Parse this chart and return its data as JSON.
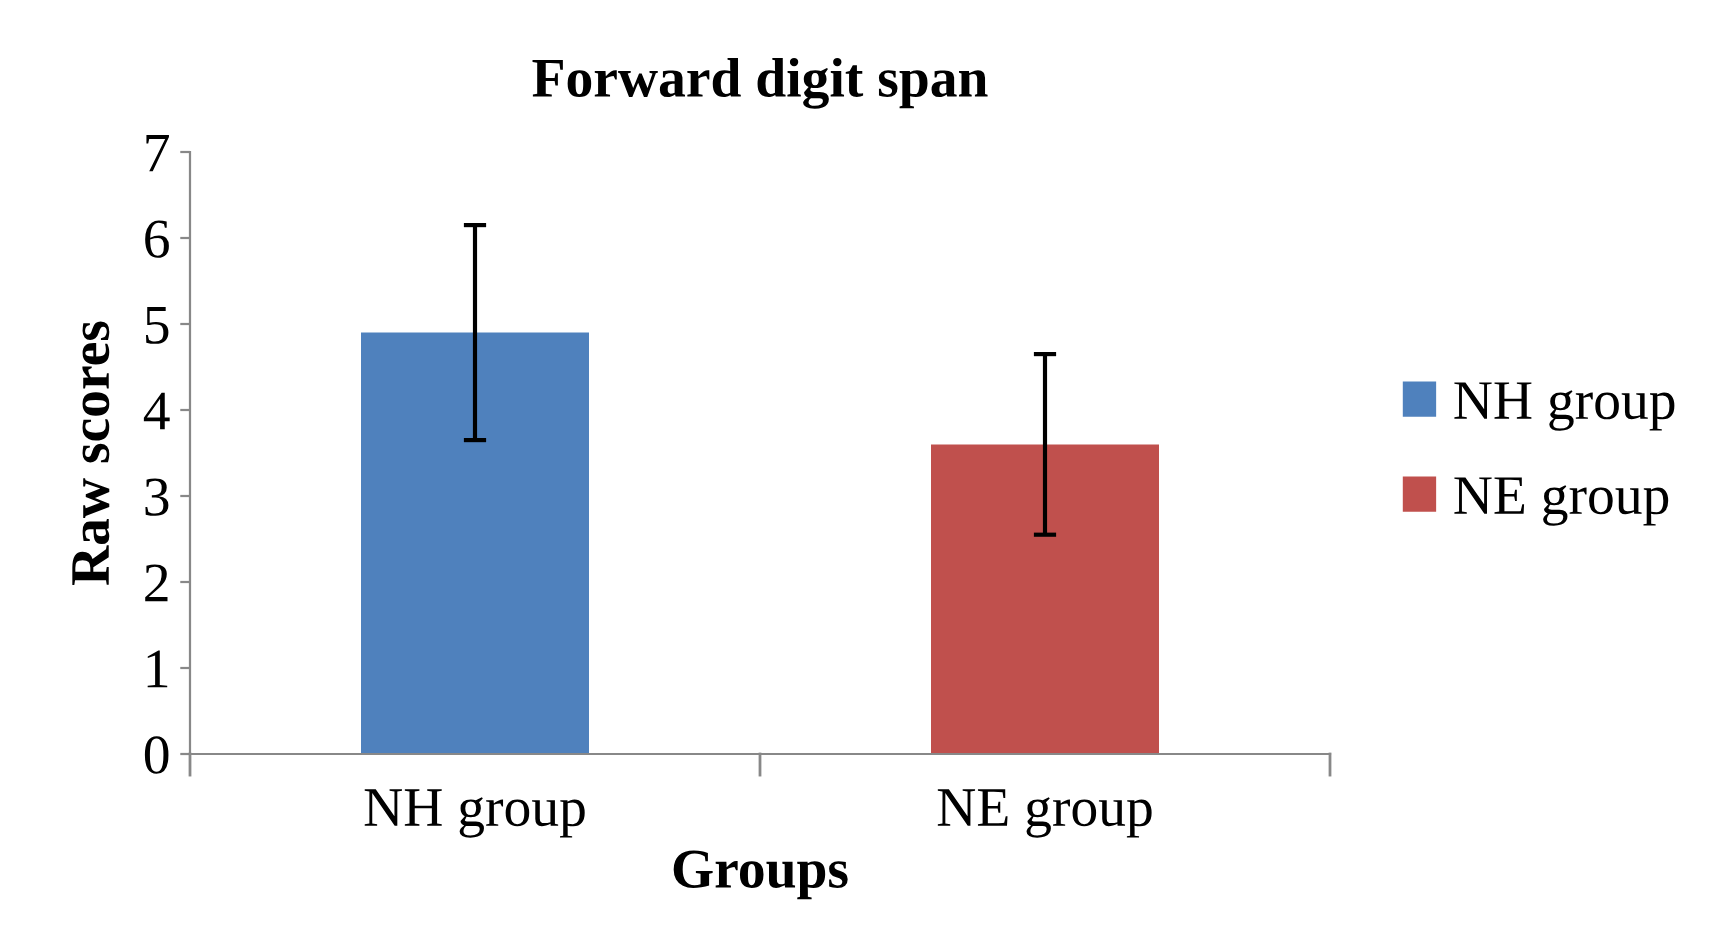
{
  "chart_data": {
    "type": "bar",
    "title": "Forward digit span",
    "xlabel": "Groups",
    "ylabel": "Raw scores",
    "categories": [
      "NH group",
      "NE group"
    ],
    "series": [
      {
        "name": "NH group",
        "color": "#4f81bd",
        "values": [
          4.9,
          null
        ],
        "errors": [
          1.25,
          null
        ]
      },
      {
        "name": "NE group",
        "color": "#c0504d",
        "values": [
          null,
          3.6
        ],
        "errors": [
          null,
          1.05
        ]
      }
    ],
    "ylim": [
      0,
      7
    ],
    "yticks": [
      0,
      1,
      2,
      3,
      4,
      5,
      6,
      7
    ],
    "grid": false,
    "legend": "right"
  }
}
